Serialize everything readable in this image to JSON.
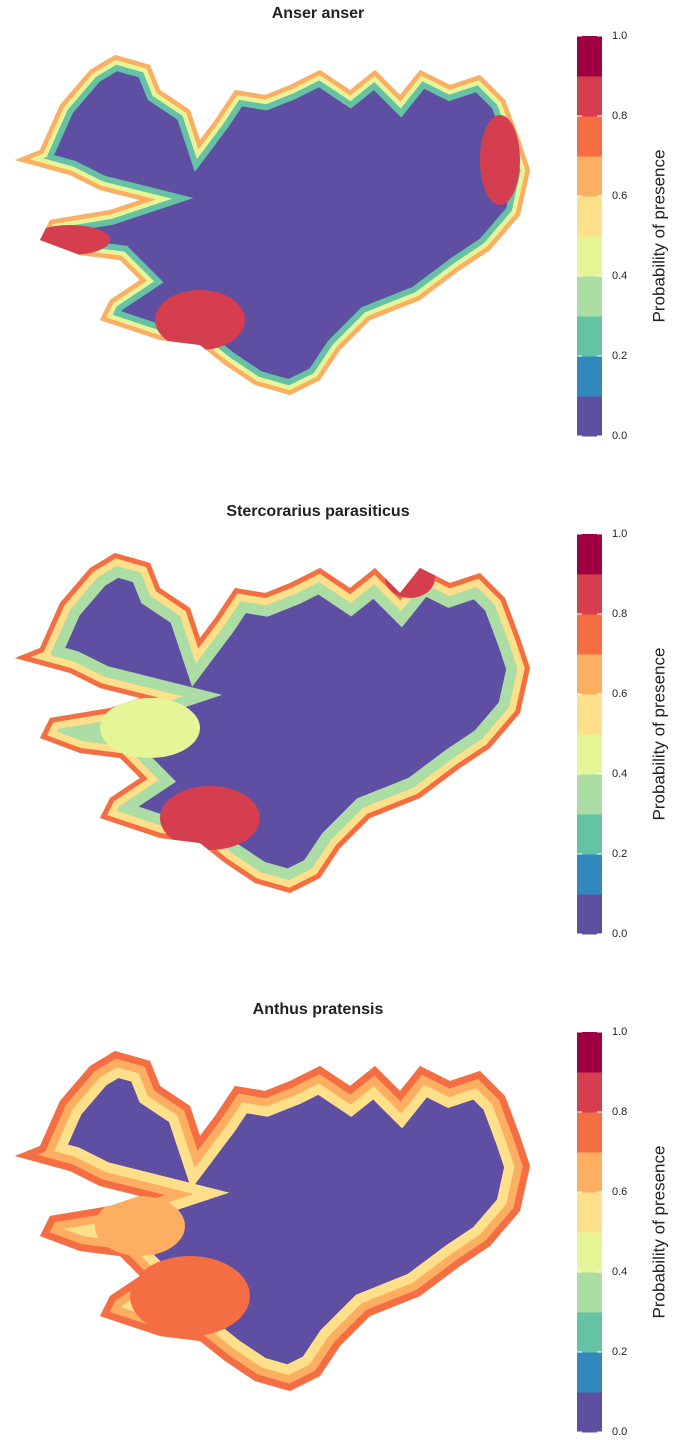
{
  "panels": [
    {
      "title": "Anser anser",
      "legend": {
        "title": "Probability of presence",
        "colors": [
          "#5e4fa2",
          "#3288bd",
          "#66c2a5",
          "#abdda4",
          "#e6f598",
          "#fee08b",
          "#fdae61",
          "#f46d43",
          "#d53e4f",
          "#9e0142"
        ],
        "ticks": [
          {
            "value": 0,
            "label": "0.0"
          },
          {
            "value": 0.2,
            "label": "0.2"
          },
          {
            "value": 0.4,
            "label": "0.4"
          },
          {
            "value": 0.6,
            "label": "0.6"
          },
          {
            "value": 0.8,
            "label": "0.8"
          },
          {
            "value": 1,
            "label": "1.0"
          }
        ]
      }
    },
    {
      "title": "Stercorarius parasiticus",
      "legend": {
        "title": "Probability of presence",
        "colors": [
          "#5e4fa2",
          "#3288bd",
          "#66c2a5",
          "#abdda4",
          "#e6f598",
          "#fee08b",
          "#fdae61",
          "#f46d43",
          "#d53e4f",
          "#9e0142"
        ],
        "ticks": [
          {
            "value": 0,
            "label": "0.0"
          },
          {
            "value": 0.2,
            "label": "0.2"
          },
          {
            "value": 0.4,
            "label": "0.4"
          },
          {
            "value": 0.6,
            "label": "0.6"
          },
          {
            "value": 0.8,
            "label": "0.8"
          },
          {
            "value": 1,
            "label": "1.0"
          }
        ]
      }
    },
    {
      "title": "Anthus pratensis",
      "legend": {
        "title": "Probability of presence",
        "colors": [
          "#5e4fa2",
          "#3288bd",
          "#66c2a5",
          "#abdda4",
          "#e6f598",
          "#fee08b",
          "#fdae61",
          "#f46d43",
          "#d53e4f",
          "#9e0142"
        ],
        "ticks": [
          {
            "value": 0,
            "label": "0.0"
          },
          {
            "value": 0.2,
            "label": "0.2"
          },
          {
            "value": 0.4,
            "label": "0.4"
          },
          {
            "value": 0.6,
            "label": "0.6"
          },
          {
            "value": 0.8,
            "label": "0.8"
          },
          {
            "value": 1,
            "label": "1.0"
          }
        ]
      }
    }
  ]
}
